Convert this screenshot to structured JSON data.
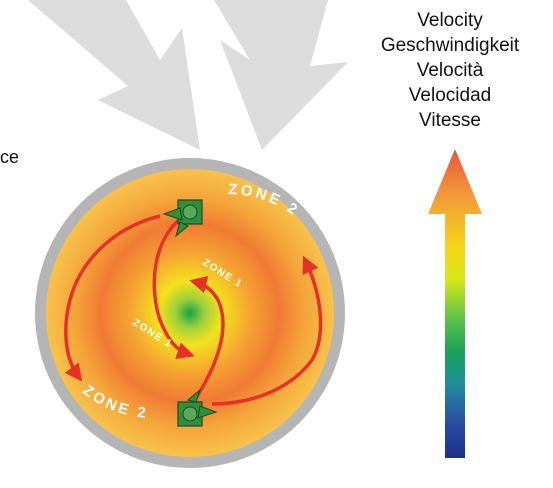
{
  "side_label_fragment": "ce",
  "legend": {
    "lines": [
      "Velocity",
      "Geschwindigkeit",
      "Velocità",
      "Velocidad",
      "Vitesse"
    ],
    "gradient_colors": [
      "#e8553a",
      "#f29a3a",
      "#f5d515",
      "#d8e81a",
      "#5cc24a",
      "#1aa05a",
      "#1f8f9a",
      "#2a4fa5",
      "#1d2f8a"
    ]
  },
  "zones": {
    "outer_top": "ZONE 2",
    "outer_bottom": "ZONE 2",
    "inner_top": "ZONE 1",
    "inner_bottom": "ZONE 1"
  },
  "colors": {
    "rim": "#b5b5b5",
    "flow_arrow": "#e8302a",
    "inner_arrow": "#e8302a",
    "mixer": "#2f8f3a",
    "center": "#1aa04a",
    "inflow_arrow": "#dcdcdc"
  },
  "icons": [
    "inflow-arrow-icon",
    "mixer-icon",
    "flow-arrow-icon"
  ]
}
